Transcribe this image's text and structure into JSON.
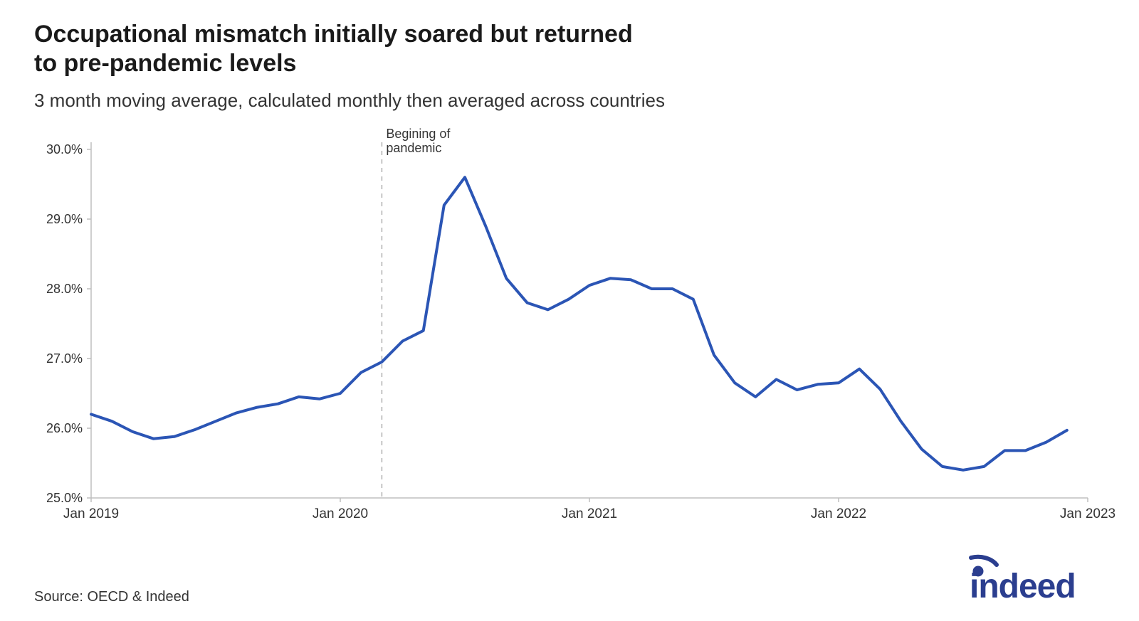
{
  "title": "Occupational mismatch initially soared but returned\n to pre-pandemic levels",
  "subtitle": "3 month moving average, calculated monthly then averaged across countries",
  "source": "Source: OECD & Indeed",
  "logo_text": "indeed",
  "logo_color": "#2b3e8f",
  "chart": {
    "type": "line",
    "line_color": "#2b55b5",
    "line_width": 4,
    "background_color": "#ffffff",
    "axis_color": "#bfbfbf",
    "axis_width": 1.5,
    "grid_on": false,
    "y": {
      "min": 25.0,
      "max": 30.0,
      "ticks": [
        25.0,
        26.0,
        27.0,
        28.0,
        29.0,
        30.0
      ],
      "tick_format_suffix": "%",
      "tick_decimals": 1,
      "label_fontsize": 18
    },
    "x": {
      "min": 0,
      "max": 48,
      "ticks": [
        {
          "pos": 0,
          "label": "Jan 2019"
        },
        {
          "pos": 12,
          "label": "Jan 2020"
        },
        {
          "pos": 24,
          "label": "Jan 2021"
        },
        {
          "pos": 36,
          "label": "Jan 2022"
        },
        {
          "pos": 48,
          "label": "Jan 2023"
        }
      ],
      "label_fontsize": 19
    },
    "reference_line": {
      "x": 14,
      "color": "#bfbfbf",
      "dash": "6,6",
      "width": 1.8,
      "label_lines": [
        "Begining of",
        "pandemic"
      ],
      "label_fontsize": 18
    },
    "series": [
      {
        "x": 0,
        "y": 26.2
      },
      {
        "x": 1,
        "y": 26.1
      },
      {
        "x": 2,
        "y": 25.95
      },
      {
        "x": 3,
        "y": 25.85
      },
      {
        "x": 4,
        "y": 25.88
      },
      {
        "x": 5,
        "y": 25.98
      },
      {
        "x": 6,
        "y": 26.1
      },
      {
        "x": 7,
        "y": 26.22
      },
      {
        "x": 8,
        "y": 26.3
      },
      {
        "x": 9,
        "y": 26.35
      },
      {
        "x": 10,
        "y": 26.45
      },
      {
        "x": 11,
        "y": 26.42
      },
      {
        "x": 12,
        "y": 26.5
      },
      {
        "x": 13,
        "y": 26.8
      },
      {
        "x": 14,
        "y": 26.95
      },
      {
        "x": 15,
        "y": 27.25
      },
      {
        "x": 16,
        "y": 27.4
      },
      {
        "x": 17,
        "y": 29.2
      },
      {
        "x": 18,
        "y": 29.6
      },
      {
        "x": 19,
        "y": 28.9
      },
      {
        "x": 20,
        "y": 28.15
      },
      {
        "x": 21,
        "y": 27.8
      },
      {
        "x": 22,
        "y": 27.7
      },
      {
        "x": 23,
        "y": 27.85
      },
      {
        "x": 24,
        "y": 28.05
      },
      {
        "x": 25,
        "y": 28.15
      },
      {
        "x": 26,
        "y": 28.13
      },
      {
        "x": 27,
        "y": 28.0
      },
      {
        "x": 28,
        "y": 28.0
      },
      {
        "x": 29,
        "y": 27.85
      },
      {
        "x": 30,
        "y": 27.05
      },
      {
        "x": 31,
        "y": 26.65
      },
      {
        "x": 32,
        "y": 26.45
      },
      {
        "x": 33,
        "y": 26.7
      },
      {
        "x": 34,
        "y": 26.55
      },
      {
        "x": 35,
        "y": 26.63
      },
      {
        "x": 36,
        "y": 26.65
      },
      {
        "x": 37,
        "y": 26.85
      },
      {
        "x": 38,
        "y": 26.56
      },
      {
        "x": 39,
        "y": 26.1
      },
      {
        "x": 40,
        "y": 25.7
      },
      {
        "x": 41,
        "y": 25.45
      },
      {
        "x": 42,
        "y": 25.4
      },
      {
        "x": 43,
        "y": 25.45
      },
      {
        "x": 44,
        "y": 25.68
      },
      {
        "x": 45,
        "y": 25.68
      },
      {
        "x": 46,
        "y": 25.8
      },
      {
        "x": 47,
        "y": 25.97
      }
    ]
  }
}
